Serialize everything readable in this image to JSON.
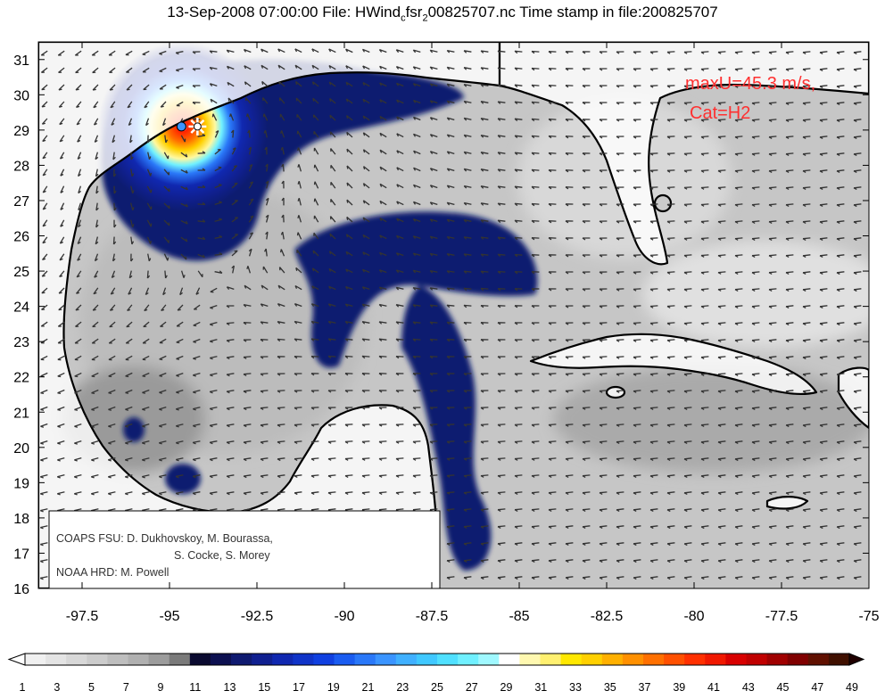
{
  "title": {
    "prefix": "13-Sep-2008 07:00:00 File: HWind",
    "sub": "c",
    "mid": "fsr",
    "sub2": "2",
    "suffix": "00825707.nc Time stamp in file:200825707"
  },
  "annotation": {
    "line1": "maxU=45.3 m/s,",
    "line2": "Cat=H2"
  },
  "credits": {
    "line1": "COAPS FSU: D. Dukhovskoy, M. Bourassa,",
    "line2": "S. Cocke, S. Morey",
    "line3": "NOAA HRD:  M. Powell"
  },
  "axes": {
    "lon_range": [
      -98.75,
      -75
    ],
    "lat_range": [
      16,
      31.5
    ],
    "x_ticks": [
      {
        "v": -97.5,
        "label": "-97.5"
      },
      {
        "v": -95,
        "label": "-95"
      },
      {
        "v": -92.5,
        "label": "-92.5"
      },
      {
        "v": -90,
        "label": "-90"
      },
      {
        "v": -87.5,
        "label": "-87.5"
      },
      {
        "v": -85,
        "label": "-85"
      },
      {
        "v": -82.5,
        "label": "-82.5"
      },
      {
        "v": -80,
        "label": "-80"
      },
      {
        "v": -77.5,
        "label": "-77.5"
      },
      {
        "v": -75,
        "label": "-75"
      }
    ],
    "y_ticks": [
      {
        "v": 16,
        "label": "16"
      },
      {
        "v": 17,
        "label": "17"
      },
      {
        "v": 18,
        "label": "18"
      },
      {
        "v": 19,
        "label": "19"
      },
      {
        "v": 20,
        "label": "20"
      },
      {
        "v": 21,
        "label": "21"
      },
      {
        "v": 22,
        "label": "22"
      },
      {
        "v": 23,
        "label": "23"
      },
      {
        "v": 24,
        "label": "24"
      },
      {
        "v": 25,
        "label": "25"
      },
      {
        "v": 26,
        "label": "26"
      },
      {
        "v": 27,
        "label": "27"
      },
      {
        "v": 28,
        "label": "28"
      },
      {
        "v": 29,
        "label": "29"
      },
      {
        "v": 30,
        "label": "30"
      },
      {
        "v": 31,
        "label": "31"
      }
    ]
  },
  "storm_center": {
    "lon": -94.2,
    "lat": 29.1
  },
  "colorbar": {
    "labels": [
      "1",
      "3",
      "5",
      "7",
      "9",
      "11",
      "13",
      "15",
      "17",
      "19",
      "21",
      "23",
      "25",
      "27",
      "29",
      "31",
      "33",
      "35",
      "37",
      "39",
      "41",
      "43",
      "45",
      "47",
      "49"
    ],
    "colors": [
      "#f0f0f0",
      "#e4e4e4",
      "#d8d8d8",
      "#cccccc",
      "#bebebe",
      "#b0b0b0",
      "#9c9c9c",
      "#7a7a7a",
      "#0a0a30",
      "#0c1050",
      "#0f1a70",
      "#102090",
      "#1028b0",
      "#1034c8",
      "#1040e0",
      "#1a5cf0",
      "#2a78f8",
      "#3a94ff",
      "#40b0ff",
      "#40c8ff",
      "#50e0ff",
      "#70f0ff",
      "#a0f8ff",
      "#ffffff",
      "#fff8b0",
      "#fff070",
      "#ffe800",
      "#ffd000",
      "#ffb000",
      "#ff9000",
      "#ff7000",
      "#ff5000",
      "#ff3000",
      "#f01800",
      "#d80000",
      "#c00000",
      "#a00000",
      "#800000",
      "#601000",
      "#401000"
    ]
  },
  "land_color": "#ffffff",
  "sea_gray": "#c8c8c8"
}
